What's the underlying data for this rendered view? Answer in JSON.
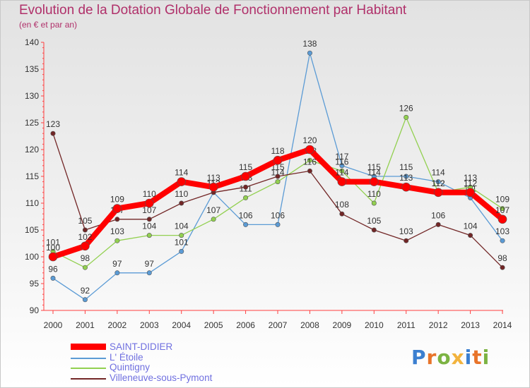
{
  "title": "Evolution de la Dotation Globale de Fonctionnement par Habitant",
  "subtitle": "(en € et par an)",
  "logo": {
    "letters": [
      "P",
      "r",
      "o",
      "x",
      "i",
      "t",
      "i"
    ],
    "colors": [
      "#3b7fd0",
      "#e8742a",
      "#7cb342",
      "#f2b33d",
      "#3b7fd0",
      "#e8742a",
      "#7cb342"
    ]
  },
  "chart_data": {
    "type": "line",
    "title": "Evolution de la Dotation Globale de Fonctionnement par Habitant",
    "ylabel": "(en € et par an)",
    "xlabel": "",
    "x": [
      "2000",
      "2001",
      "2002",
      "2003",
      "2004",
      "2005",
      "2006",
      "2007",
      "2008",
      "2009",
      "2010",
      "2011",
      "2012",
      "2013",
      "2014"
    ],
    "ylim": [
      90,
      140
    ],
    "yticks": [
      90,
      95,
      100,
      105,
      110,
      115,
      120,
      125,
      130,
      135,
      140
    ],
    "grid": false,
    "legend": "bottom-left",
    "series": [
      {
        "name": "L' Étoile",
        "color": "#5b9bd5",
        "values": [
          96,
          92,
          97,
          97,
          101,
          112,
          106,
          106,
          138,
          117,
          115,
          115,
          114,
          111,
          103
        ]
      },
      {
        "name": "Quintigny",
        "color": "#92d050",
        "values": [
          101,
          98,
          103,
          104,
          104,
          107,
          111,
          114,
          118,
          116,
          110,
          126,
          112,
          113,
          109
        ]
      },
      {
        "name": "Villeneuve-sous-Pymont",
        "color": "#722626",
        "values": [
          123,
          105,
          107,
          107,
          110,
          112,
          113,
          115,
          116,
          108,
          105,
          103,
          106,
          104,
          98
        ]
      },
      {
        "name": "SAINT-DIDIER",
        "color": "#ff0000",
        "values": [
          100,
          102,
          109,
          110,
          114,
          113,
          115,
          118,
          120,
          114,
          114,
          113,
          112,
          112,
          107
        ]
      }
    ]
  }
}
